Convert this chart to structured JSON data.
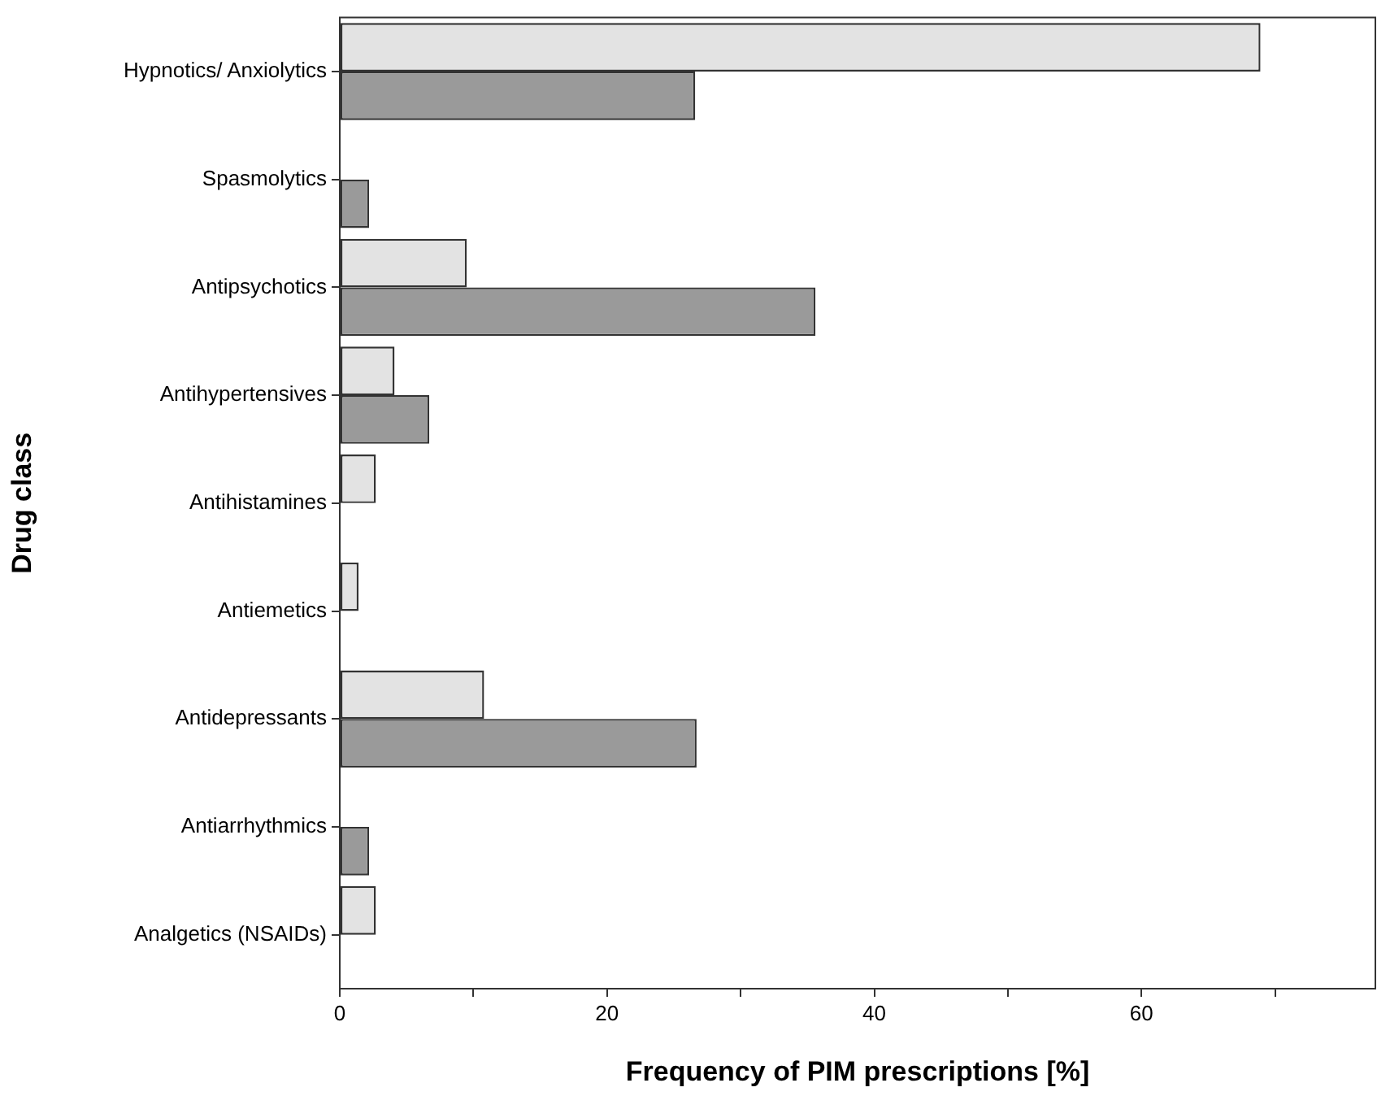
{
  "chart_data": {
    "type": "bar",
    "orientation": "horizontal",
    "xlabel": "Frequency of PIM prescriptions [%]",
    "ylabel": "Drug class",
    "categories": [
      "Hypnotics/ Anxiolytics",
      "Spasmolytics",
      "Antipsychotics",
      "Antihypertensives",
      "Antihistamines",
      "Antiemetics",
      "Antidepressants",
      "Antiarrhythmics",
      "Analgetics (NSAIDs)"
    ],
    "series": [
      {
        "color": "#e3e3e3",
        "values": [
          68.9,
          null,
          9.5,
          4.1,
          2.7,
          1.4,
          10.8,
          null,
          2.7
        ]
      },
      {
        "color": "#9a9a9a",
        "values": [
          26.6,
          2.2,
          35.6,
          6.7,
          null,
          null,
          26.7,
          2.2,
          null
        ]
      }
    ],
    "xlim": [
      0,
      77.5
    ],
    "xticks": [
      0,
      {
        "value": 10,
        "label": null
      },
      20,
      {
        "value": 30,
        "label": null
      },
      40,
      {
        "value": 50,
        "label": null
      },
      60,
      {
        "value": 70,
        "label": null
      }
    ],
    "grid": false,
    "legend": false
  }
}
